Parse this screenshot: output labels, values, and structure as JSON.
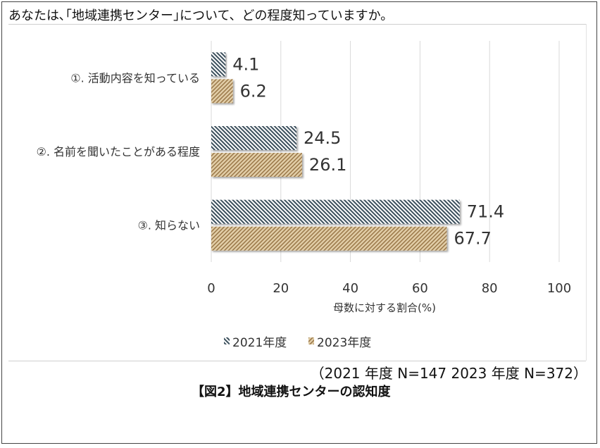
{
  "question": "あなたは､｢地域連携センター｣について、どの程度知っていますか。",
  "sample_note": "（2021 年度  N=147  2023 年度  N=372）",
  "figure_caption": "【図2】地域連携センターの認知度",
  "colors": {
    "series_2021_stripe": "#3b4f5c",
    "series_2023_stripe": "#9c7a4c",
    "series_2023_base": "#e3cfa9",
    "grid": "#d9d9d9"
  },
  "chart_data": {
    "type": "bar",
    "orientation": "horizontal",
    "categories": [
      "①. 活動内容を知っている",
      "②. 名前を聞いたことがある程度",
      "③. 知らない"
    ],
    "series": [
      {
        "name": "2021年度",
        "values": [
          4.1,
          24.5,
          71.4
        ],
        "labels": [
          "4.1",
          "24.5",
          "71.4"
        ]
      },
      {
        "name": "2023年度",
        "values": [
          6.2,
          26.1,
          67.7
        ],
        "labels": [
          "6.2",
          "26.1",
          "67.7"
        ]
      }
    ],
    "xlabel": "母数に対する割合(%)",
    "xlim": [
      0,
      100
    ],
    "xticks": [
      "0",
      "20",
      "40",
      "60",
      "80",
      "100"
    ],
    "grid": true,
    "legend": "bottom"
  }
}
